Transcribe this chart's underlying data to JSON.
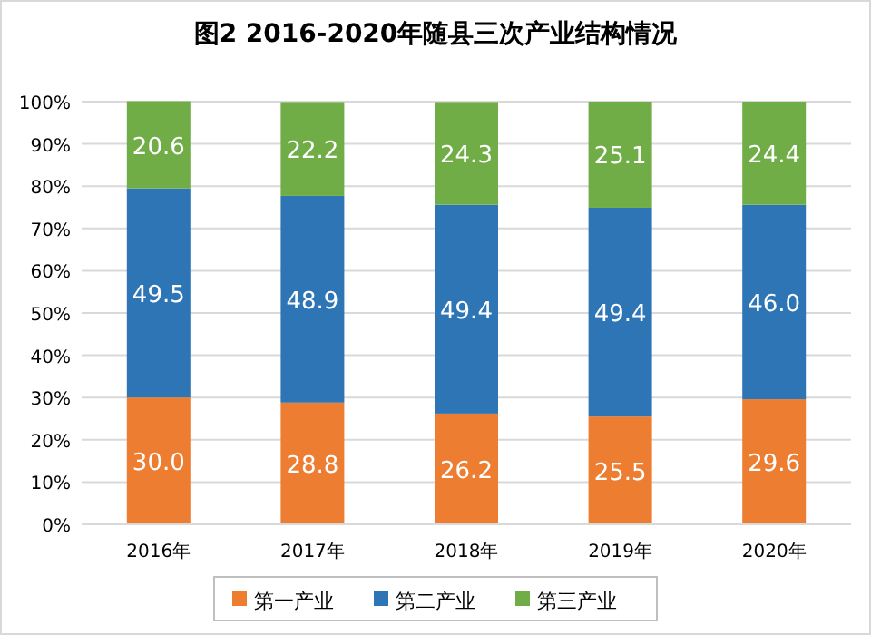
{
  "chart_data": {
    "type": "bar",
    "stacked": true,
    "title": "图2  2016-2020年随县三次产业结构情况",
    "categories": [
      "2016年",
      "2017年",
      "2018年",
      "2019年",
      "2020年"
    ],
    "series": [
      {
        "name": "第一产业",
        "color": "#ed7d31",
        "values": [
          30.0,
          28.8,
          26.2,
          25.5,
          29.6
        ],
        "value_labels": [
          "30.0",
          "28.8",
          "26.2",
          "25.5",
          "29.6"
        ]
      },
      {
        "name": "第二产业",
        "color": "#2e75b6",
        "values": [
          49.5,
          48.9,
          49.4,
          49.4,
          46.0
        ],
        "value_labels": [
          "49.5",
          "48.9",
          "49.4",
          "49.4",
          "46.0"
        ]
      },
      {
        "name": "第三产业",
        "color": "#70ad47",
        "values": [
          20.6,
          22.2,
          24.3,
          25.1,
          24.4
        ],
        "value_labels": [
          "20.6",
          "22.2",
          "24.3",
          "25.1",
          "24.4"
        ]
      }
    ],
    "ylim": [
      0,
      100
    ],
    "yticks": [
      {
        "value": 0,
        "label": "0%"
      },
      {
        "value": 10,
        "label": "10%"
      },
      {
        "value": 20,
        "label": "20%"
      },
      {
        "value": 30,
        "label": "30%"
      },
      {
        "value": 40,
        "label": "40%"
      },
      {
        "value": 50,
        "label": "50%"
      },
      {
        "value": 60,
        "label": "60%"
      },
      {
        "value": 70,
        "label": "70%"
      },
      {
        "value": 80,
        "label": "80%"
      },
      {
        "value": 90,
        "label": "90%"
      },
      {
        "value": 100,
        "label": "100%"
      }
    ],
    "grid": "y",
    "legend": "bottom"
  }
}
